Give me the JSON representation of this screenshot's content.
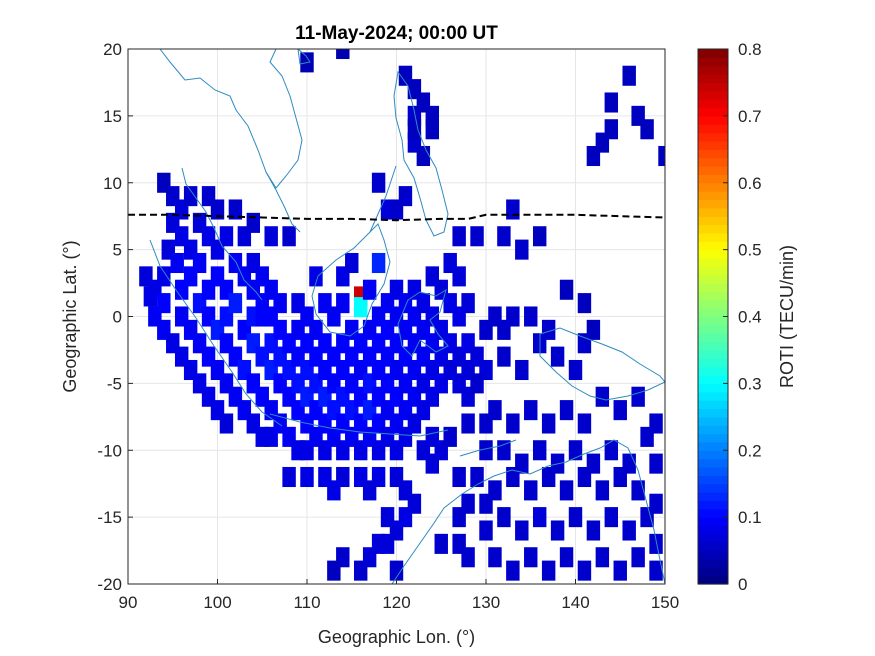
{
  "chart_data": {
    "type": "heatmap",
    "title": "11-May-2024; 00:00 UT",
    "xlabel": "Geographic Lon. (°)",
    "ylabel": "Geographic Lat. (°)",
    "xlim": [
      90,
      150
    ],
    "ylim": [
      -20,
      20
    ],
    "xticks": [
      90,
      100,
      110,
      120,
      130,
      140,
      150
    ],
    "yticks": [
      -20,
      -15,
      -10,
      -5,
      0,
      5,
      10,
      15,
      20
    ],
    "grid": true,
    "colorbar": {
      "label": "ROTI (TECU/min)",
      "range": [
        0,
        0.8
      ],
      "ticks": [
        0,
        0.1,
        0.2,
        0.3,
        0.4,
        0.5,
        0.6,
        0.7,
        0.8
      ],
      "colormap": "jet"
    },
    "magnetic_equator": [
      [
        90,
        7.6
      ],
      [
        95,
        7.6
      ],
      [
        100,
        7.5
      ],
      [
        105,
        7.4
      ],
      [
        110,
        7.3
      ],
      [
        115,
        7.3
      ],
      [
        120,
        7.2
      ],
      [
        125,
        7.3
      ],
      [
        128,
        7.3
      ],
      [
        130,
        7.6
      ],
      [
        135,
        7.6
      ],
      [
        140,
        7.6
      ],
      [
        145,
        7.5
      ],
      [
        150,
        7.4
      ]
    ],
    "pixels": [
      [
        92,
        3,
        0.07
      ],
      [
        92.5,
        1.5,
        0.08
      ],
      [
        93,
        0,
        0.09
      ],
      [
        93,
        2,
        0.08
      ],
      [
        94,
        -1,
        0.09
      ],
      [
        94,
        1,
        0.1
      ],
      [
        94,
        3,
        0.08
      ],
      [
        94.5,
        5,
        0.07
      ],
      [
        95,
        9,
        0.06
      ],
      [
        95,
        7,
        0.07
      ],
      [
        95,
        -2,
        0.08
      ],
      [
        95.5,
        4,
        0.09
      ],
      [
        96,
        8,
        0.07
      ],
      [
        96,
        6,
        0.08
      ],
      [
        96,
        2,
        0.1
      ],
      [
        96,
        0,
        0.09
      ],
      [
        96,
        -3,
        0.08
      ],
      [
        97,
        5,
        0.08
      ],
      [
        97,
        3,
        0.1
      ],
      [
        97,
        -1,
        0.09
      ],
      [
        97,
        -4,
        0.08
      ],
      [
        98,
        7,
        0.07
      ],
      [
        98,
        4,
        0.09
      ],
      [
        98,
        1,
        0.11
      ],
      [
        98,
        -2,
        0.09
      ],
      [
        98,
        -5,
        0.08
      ],
      [
        99,
        6,
        0.08
      ],
      [
        99,
        2,
        0.1
      ],
      [
        99,
        0,
        0.1
      ],
      [
        99,
        -3,
        0.1
      ],
      [
        99,
        -6,
        0.08
      ],
      [
        100,
        5,
        0.08
      ],
      [
        100,
        3,
        0.1
      ],
      [
        100,
        -1,
        0.12
      ],
      [
        100,
        -4,
        0.09
      ],
      [
        100,
        -7,
        0.08
      ],
      [
        101,
        6,
        0.08
      ],
      [
        101,
        2,
        0.1
      ],
      [
        101,
        0,
        0.11
      ],
      [
        101,
        -2,
        0.1
      ],
      [
        101,
        -5,
        0.09
      ],
      [
        101,
        -8,
        0.07
      ],
      [
        102,
        4,
        0.09
      ],
      [
        102,
        1,
        0.12
      ],
      [
        102,
        -3,
        0.1
      ],
      [
        102,
        -6,
        0.09
      ],
      [
        103,
        6,
        0.07
      ],
      [
        103,
        3,
        0.09
      ],
      [
        103,
        -1,
        0.1
      ],
      [
        103,
        -4,
        0.11
      ],
      [
        103,
        -7,
        0.09
      ],
      [
        104,
        2,
        0.09
      ],
      [
        104,
        0,
        0.11
      ],
      [
        104,
        -2,
        0.12
      ],
      [
        104,
        -5,
        0.1
      ],
      [
        104,
        -8,
        0.08
      ],
      [
        105,
        3,
        0.09
      ],
      [
        105,
        1,
        0.1
      ],
      [
        105,
        -3,
        0.11
      ],
      [
        105,
        -6,
        0.1
      ],
      [
        105,
        -9,
        0.08
      ],
      [
        106,
        0,
        0.1
      ],
      [
        106,
        -2,
        0.11
      ],
      [
        106,
        -4,
        0.12
      ],
      [
        106,
        -7,
        0.09
      ],
      [
        106,
        -9,
        0.08
      ],
      [
        107,
        1,
        0.09
      ],
      [
        107,
        -1,
        0.1
      ],
      [
        107,
        -3,
        0.11
      ],
      [
        107,
        -5,
        0.1
      ],
      [
        107,
        -8,
        0.09
      ],
      [
        108,
        6,
        0.06
      ],
      [
        108,
        -2,
        0.1
      ],
      [
        108,
        -4,
        0.11
      ],
      [
        108,
        -6,
        0.1
      ],
      [
        108,
        -9,
        0.09
      ],
      [
        109,
        1,
        0.08
      ],
      [
        109,
        -1,
        0.09
      ],
      [
        109,
        -3,
        0.1
      ],
      [
        109,
        -5,
        0.11
      ],
      [
        109,
        -7,
        0.1
      ],
      [
        109,
        -10,
        0.08
      ],
      [
        110,
        0,
        0.09
      ],
      [
        110,
        -2,
        0.1
      ],
      [
        110,
        -4,
        0.11
      ],
      [
        110,
        -6,
        0.12
      ],
      [
        110,
        -8,
        0.1
      ],
      [
        110,
        -10,
        0.08
      ],
      [
        111,
        3,
        0.08
      ],
      [
        111,
        -1,
        0.09
      ],
      [
        111,
        -3,
        0.1
      ],
      [
        111,
        -5,
        0.11
      ],
      [
        111,
        -7,
        0.1
      ],
      [
        111,
        -9,
        0.09
      ],
      [
        112,
        1,
        0.09
      ],
      [
        112,
        -2,
        0.1
      ],
      [
        112,
        -4,
        0.1
      ],
      [
        112,
        -6,
        0.12
      ],
      [
        112,
        -8,
        0.1
      ],
      [
        112,
        -10,
        0.08
      ],
      [
        113,
        0,
        0.09
      ],
      [
        113,
        -3,
        0.1
      ],
      [
        113,
        -5,
        0.1
      ],
      [
        113,
        -7,
        0.11
      ],
      [
        113,
        -9,
        0.09
      ],
      [
        114,
        3,
        0.08
      ],
      [
        114,
        1,
        0.09
      ],
      [
        114,
        -2,
        0.1
      ],
      [
        114,
        -4,
        0.1
      ],
      [
        114,
        -6,
        0.11
      ],
      [
        114,
        -8,
        0.1
      ],
      [
        114,
        -10,
        0.08
      ],
      [
        115,
        4,
        0.07
      ],
      [
        115,
        -1,
        0.09
      ],
      [
        115,
        -3,
        0.1
      ],
      [
        115,
        -5,
        0.1
      ],
      [
        115,
        -7,
        0.11
      ],
      [
        115,
        -9,
        0.09
      ],
      [
        116,
        1.5,
        0.74
      ],
      [
        116,
        0.7,
        0.3
      ],
      [
        116,
        -2,
        0.1
      ],
      [
        116,
        -4,
        0.09
      ],
      [
        116,
        -6,
        0.1
      ],
      [
        116,
        -8,
        0.1
      ],
      [
        116,
        -10,
        0.08
      ],
      [
        117,
        2,
        0.09
      ],
      [
        117,
        -1,
        0.09
      ],
      [
        117,
        -3,
        0.1
      ],
      [
        117,
        -5,
        0.11
      ],
      [
        117,
        -7,
        0.12
      ],
      [
        117,
        -9,
        0.09
      ],
      [
        118,
        4,
        0.13
      ],
      [
        118,
        0,
        0.09
      ],
      [
        118,
        -2,
        0.1
      ],
      [
        118,
        -4,
        0.1
      ],
      [
        118,
        -6,
        0.1
      ],
      [
        118,
        -8,
        0.1
      ],
      [
        118,
        -10,
        0.08
      ],
      [
        119,
        1,
        0.09
      ],
      [
        119,
        -1,
        0.1
      ],
      [
        119,
        -3,
        0.1
      ],
      [
        119,
        -5,
        0.1
      ],
      [
        119,
        -7,
        0.09
      ],
      [
        119,
        -9,
        0.08
      ],
      [
        120,
        2,
        0.08
      ],
      [
        120,
        0,
        0.09
      ],
      [
        120,
        -2,
        0.1
      ],
      [
        120,
        -4,
        0.09
      ],
      [
        120,
        -6,
        0.1
      ],
      [
        120,
        -8,
        0.09
      ],
      [
        120,
        -10,
        0.08
      ],
      [
        121,
        1,
        0.09
      ],
      [
        121,
        -1,
        0.09
      ],
      [
        121,
        -3,
        0.1
      ],
      [
        121,
        -5,
        0.09
      ],
      [
        121,
        -7,
        0.09
      ],
      [
        121,
        -9,
        0.08
      ],
      [
        122,
        2,
        0.08
      ],
      [
        122,
        0,
        0.09
      ],
      [
        122,
        -2,
        0.09
      ],
      [
        122,
        -4,
        0.09
      ],
      [
        122,
        -6,
        0.09
      ],
      [
        122,
        -8,
        0.08
      ],
      [
        123,
        1,
        0.08
      ],
      [
        123,
        -1,
        0.09
      ],
      [
        123,
        -3,
        0.09
      ],
      [
        123,
        -5,
        0.08
      ],
      [
        123,
        -7,
        0.08
      ],
      [
        124,
        3,
        0.07
      ],
      [
        124,
        0,
        0.08
      ],
      [
        124,
        -2,
        0.09
      ],
      [
        124,
        -4,
        0.08
      ],
      [
        124,
        -6,
        0.08
      ],
      [
        125,
        2,
        0.07
      ],
      [
        125,
        -1,
        0.08
      ],
      [
        125,
        -3,
        0.08
      ],
      [
        125,
        -5,
        0.08
      ],
      [
        126,
        4,
        0.07
      ],
      [
        126,
        1,
        0.08
      ],
      [
        126,
        -2,
        0.08
      ],
      [
        126,
        -4,
        0.07
      ],
      [
        127,
        3,
        0.07
      ],
      [
        127,
        0,
        0.08
      ],
      [
        127,
        -3,
        0.07
      ],
      [
        127,
        -5,
        0.07
      ],
      [
        128,
        1,
        0.07
      ],
      [
        128,
        -2,
        0.08
      ],
      [
        128,
        -4,
        0.07
      ],
      [
        128,
        -6,
        0.07
      ],
      [
        118,
        10,
        0.06
      ],
      [
        119,
        8,
        0.07
      ],
      [
        120,
        8,
        0.06
      ],
      [
        121,
        9,
        0.06
      ],
      [
        122,
        15,
        0.06
      ],
      [
        122,
        13,
        0.06
      ],
      [
        123,
        12,
        0.05
      ],
      [
        127,
        6,
        0.06
      ],
      [
        129,
        6,
        0.06
      ],
      [
        108,
        -12,
        0.07
      ],
      [
        110,
        -12,
        0.08
      ],
      [
        112,
        -12,
        0.08
      ],
      [
        114,
        -12,
        0.07
      ],
      [
        116,
        -12,
        0.08
      ],
      [
        118,
        -12,
        0.08
      ],
      [
        120,
        -12,
        0.07
      ],
      [
        121,
        -13,
        0.07
      ],
      [
        117,
        -13,
        0.07
      ],
      [
        113,
        -13,
        0.08
      ],
      [
        119,
        -15,
        0.07
      ],
      [
        118,
        -17,
        0.07
      ],
      [
        119,
        -17,
        0.07
      ],
      [
        120,
        -16,
        0.07
      ],
      [
        121,
        -15,
        0.08
      ],
      [
        122,
        -14,
        0.07
      ],
      [
        117,
        -18,
        0.07
      ],
      [
        116,
        -19,
        0.06
      ],
      [
        114,
        -18,
        0.06
      ],
      [
        113,
        -19,
        0.05
      ],
      [
        123,
        -10,
        0.07
      ],
      [
        124,
        -11,
        0.07
      ],
      [
        125,
        -10,
        0.07
      ],
      [
        124,
        -9,
        0.07
      ],
      [
        120,
        -19,
        0.06
      ],
      [
        125,
        -17,
        0.06
      ],
      [
        127,
        -17,
        0.06
      ],
      [
        128,
        -18,
        0.06
      ],
      [
        131,
        -18,
        0.06
      ],
      [
        133,
        -19,
        0.06
      ],
      [
        135,
        -18,
        0.06
      ],
      [
        137,
        -19,
        0.06
      ],
      [
        139,
        -18,
        0.06
      ],
      [
        141,
        -19,
        0.06
      ],
      [
        143,
        -18,
        0.06
      ],
      [
        145,
        -19,
        0.06
      ],
      [
        147,
        -18,
        0.06
      ],
      [
        149,
        -19,
        0.06
      ],
      [
        130,
        -16,
        0.06
      ],
      [
        132,
        -15,
        0.06
      ],
      [
        134,
        -16,
        0.06
      ],
      [
        136,
        -15,
        0.07
      ],
      [
        138,
        -16,
        0.06
      ],
      [
        140,
        -15,
        0.06
      ],
      [
        142,
        -16,
        0.06
      ],
      [
        144,
        -15,
        0.06
      ],
      [
        146,
        -16,
        0.06
      ],
      [
        148,
        -15,
        0.06
      ],
      [
        149,
        -17,
        0.06
      ],
      [
        131,
        -13,
        0.06
      ],
      [
        133,
        -12,
        0.06
      ],
      [
        135,
        -13,
        0.06
      ],
      [
        137,
        -12,
        0.06
      ],
      [
        139,
        -13,
        0.06
      ],
      [
        141,
        -12,
        0.06
      ],
      [
        143,
        -13,
        0.06
      ],
      [
        145,
        -12,
        0.06
      ],
      [
        147,
        -13,
        0.06
      ],
      [
        149,
        -14,
        0.06
      ],
      [
        130,
        -10,
        0.06
      ],
      [
        132,
        -10,
        0.06
      ],
      [
        134,
        -11,
        0.06
      ],
      [
        136,
        -10,
        0.06
      ],
      [
        138,
        -11,
        0.06
      ],
      [
        140,
        -10,
        0.06
      ],
      [
        142,
        -11,
        0.06
      ],
      [
        144,
        -10,
        0.06
      ],
      [
        146,
        -11,
        0.06
      ],
      [
        148,
        -9,
        0.06
      ],
      [
        149,
        -11,
        0.06
      ],
      [
        131,
        -7,
        0.06
      ],
      [
        133,
        -8,
        0.06
      ],
      [
        135,
        -7,
        0.06
      ],
      [
        137,
        -8,
        0.06
      ],
      [
        139,
        -7,
        0.06
      ],
      [
        141,
        -8,
        0.06
      ],
      [
        143,
        -6,
        0.06
      ],
      [
        145,
        -7,
        0.06
      ],
      [
        147,
        -6,
        0.06
      ],
      [
        149,
        -8,
        0.06
      ],
      [
        130,
        -4,
        0.07
      ],
      [
        132,
        -3,
        0.06
      ],
      [
        134,
        -4,
        0.06
      ],
      [
        136,
        -2,
        0.06
      ],
      [
        138,
        -3,
        0.06
      ],
      [
        140,
        -4,
        0.06
      ],
      [
        141,
        -2,
        0.06
      ],
      [
        130,
        -1,
        0.06
      ],
      [
        131,
        0,
        0.06
      ],
      [
        132,
        -1,
        0.06
      ],
      [
        133,
        0,
        0.06
      ],
      [
        135,
        0,
        0.06
      ],
      [
        137,
        -1,
        0.06
      ],
      [
        129,
        -3,
        0.07
      ],
      [
        129,
        -5,
        0.06
      ],
      [
        126,
        -9,
        0.06
      ],
      [
        128,
        -8,
        0.06
      ],
      [
        130,
        -8,
        0.06
      ],
      [
        127,
        -12,
        0.06
      ],
      [
        129,
        -12,
        0.06
      ],
      [
        128,
        -14,
        0.06
      ],
      [
        130,
        -14,
        0.06
      ],
      [
        127,
        -15,
        0.06
      ],
      [
        139,
        2,
        0.05
      ],
      [
        141,
        1,
        0.05
      ],
      [
        142,
        -1,
        0.05
      ],
      [
        144,
        16,
        0.05
      ],
      [
        144,
        14,
        0.05
      ],
      [
        143,
        13,
        0.05
      ],
      [
        142,
        12,
        0.05
      ],
      [
        146,
        18,
        0.05
      ],
      [
        147,
        15,
        0.05
      ],
      [
        150,
        12,
        0.05
      ],
      [
        148,
        14,
        0.05
      ],
      [
        132,
        6,
        0.06
      ],
      [
        134,
        5,
        0.06
      ],
      [
        136,
        6,
        0.05
      ],
      [
        133,
        8,
        0.06
      ],
      [
        105,
        0,
        0.1
      ],
      [
        106,
        2,
        0.09
      ],
      [
        104,
        4,
        0.08
      ],
      [
        100,
        8,
        0.06
      ],
      [
        102,
        8,
        0.06
      ],
      [
        104,
        7,
        0.06
      ],
      [
        106,
        6,
        0.07
      ],
      [
        99,
        9,
        0.06
      ],
      [
        97,
        9,
        0.06
      ],
      [
        94,
        10,
        0.05
      ],
      [
        110,
        19,
        0.04
      ],
      [
        114,
        20,
        0.04
      ],
      [
        121,
        18,
        0.05
      ],
      [
        122,
        17,
        0.05
      ],
      [
        123,
        16,
        0.05
      ],
      [
        124,
        15,
        0.05
      ],
      [
        122,
        14,
        0.05
      ],
      [
        124,
        14,
        0.05
      ]
    ]
  }
}
